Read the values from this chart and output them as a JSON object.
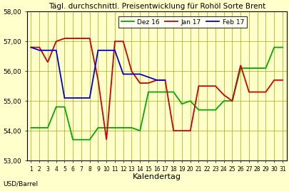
{
  "title": "Tägl. durchschnittl. Preisentwicklung für Rohöl Sorte Brent",
  "xlabel": "Kalendertag",
  "ylabel": "USD/Barrel",
  "ylim": [
    53.0,
    58.0
  ],
  "yticks": [
    53.0,
    54.0,
    55.0,
    56.0,
    57.0,
    58.0
  ],
  "ytick_labels": [
    "53,00",
    "54,00",
    "55,00",
    "56,00",
    "57,00",
    "58,00"
  ],
  "xticks": [
    1,
    2,
    3,
    4,
    5,
    6,
    7,
    8,
    9,
    10,
    11,
    12,
    13,
    14,
    15,
    16,
    17,
    18,
    19,
    20,
    21,
    22,
    23,
    24,
    25,
    26,
    27,
    28,
    29,
    30,
    31
  ],
  "background_color": "#FFFFCC",
  "grid_color": "#AAAA00",
  "series": [
    {
      "label": "Dez 16",
      "color": "#00AA00",
      "x": [
        1,
        2,
        3,
        4,
        5,
        6,
        7,
        8,
        9,
        10,
        11,
        12,
        13,
        14,
        15,
        16,
        17,
        18,
        19,
        20,
        21,
        22,
        23,
        24,
        25,
        26,
        27,
        28,
        29,
        30,
        31
      ],
      "y": [
        54.1,
        54.1,
        54.1,
        54.8,
        54.8,
        53.7,
        53.7,
        53.7,
        54.1,
        54.1,
        54.1,
        54.1,
        54.1,
        54.0,
        55.3,
        55.3,
        55.3,
        55.3,
        54.9,
        55.0,
        54.7,
        54.7,
        54.7,
        55.0,
        55.0,
        56.1,
        56.1,
        56.1,
        56.1,
        56.8,
        56.8
      ]
    },
    {
      "label": "Jan 17",
      "color": "#CC0000",
      "x": [
        1,
        2,
        3,
        4,
        5,
        6,
        7,
        8,
        9,
        10,
        11,
        12,
        13,
        14,
        15,
        16,
        17,
        18,
        19,
        20,
        21,
        22,
        23,
        24,
        25,
        26,
        27,
        28,
        29,
        30,
        31
      ],
      "y": [
        56.8,
        56.8,
        56.3,
        57.0,
        57.1,
        57.1,
        57.1,
        57.1,
        55.7,
        53.7,
        57.0,
        57.0,
        56.0,
        55.6,
        55.6,
        55.7,
        55.7,
        54.0,
        54.0,
        54.0,
        55.5,
        55.5,
        55.5,
        55.2,
        55.0,
        56.2,
        55.3,
        55.3,
        55.3,
        55.7,
        55.7
      ]
    },
    {
      "label": "Feb 17",
      "color": "#0000CC",
      "x": [
        1,
        2,
        3,
        4,
        5,
        6,
        7,
        8,
        9,
        10,
        11,
        12,
        13,
        14,
        15,
        16,
        17
      ],
      "y": [
        56.8,
        56.7,
        56.7,
        56.7,
        55.1,
        55.1,
        55.1,
        55.1,
        56.7,
        56.7,
        56.7,
        55.9,
        55.9,
        55.9,
        55.8,
        55.7,
        55.7
      ]
    }
  ]
}
